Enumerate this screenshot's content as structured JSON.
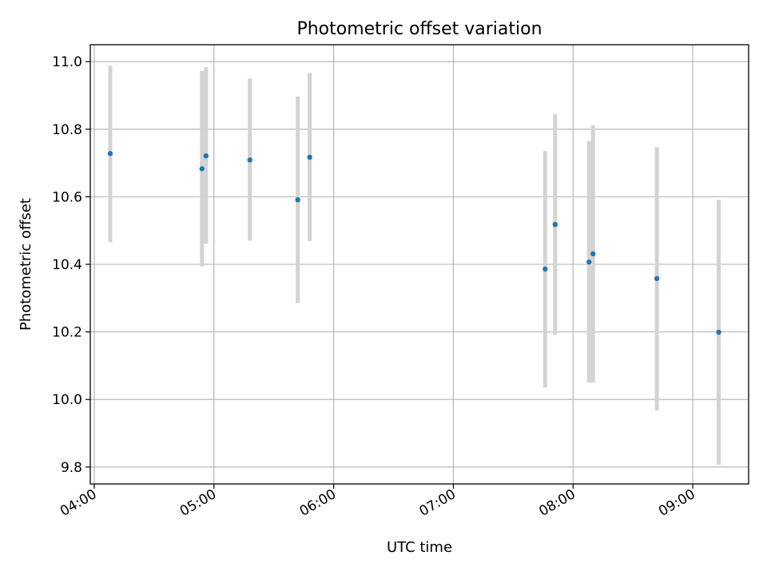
{
  "chart_data": {
    "type": "scatter",
    "title": "Photometric offset variation",
    "xlabel": "UTC time",
    "ylabel": "Photometric offset",
    "x_unit": "UTC hours",
    "xlim": [
      "03:58",
      "09:28"
    ],
    "ylim": [
      9.75,
      11.05
    ],
    "x_ticks": [
      "04:00",
      "05:00",
      "06:00",
      "07:00",
      "08:00",
      "09:00"
    ],
    "y_ticks": [
      "9.8",
      "10.0",
      "10.2",
      "10.4",
      "10.6",
      "10.8",
      "11.0"
    ],
    "grid": true,
    "colors": {
      "point": "#1f77b4",
      "errorbar": "#d3d3d3",
      "grid": "#b0b0b0"
    },
    "points": [
      {
        "x": "04:08",
        "y": 10.728,
        "low": 10.466,
        "high": 10.988
      },
      {
        "x": "04:54",
        "y": 10.683,
        "low": 10.394,
        "high": 10.972
      },
      {
        "x": "04:56",
        "y": 10.721,
        "low": 10.461,
        "high": 10.983
      },
      {
        "x": "05:18",
        "y": 10.709,
        "low": 10.47,
        "high": 10.95
      },
      {
        "x": "05:42",
        "y": 10.591,
        "low": 10.285,
        "high": 10.897
      },
      {
        "x": "05:48",
        "y": 10.717,
        "low": 10.469,
        "high": 10.966
      },
      {
        "x": "07:46",
        "y": 10.386,
        "low": 10.035,
        "high": 10.735
      },
      {
        "x": "07:51",
        "y": 10.518,
        "low": 10.192,
        "high": 10.844
      },
      {
        "x": "08:08",
        "y": 10.407,
        "low": 10.05,
        "high": 10.765
      },
      {
        "x": "08:10",
        "y": 10.431,
        "low": 10.05,
        "high": 10.812
      },
      {
        "x": "08:42",
        "y": 10.358,
        "low": 9.968,
        "high": 10.747
      },
      {
        "x": "09:13",
        "y": 10.199,
        "low": 9.807,
        "high": 10.591
      }
    ]
  }
}
